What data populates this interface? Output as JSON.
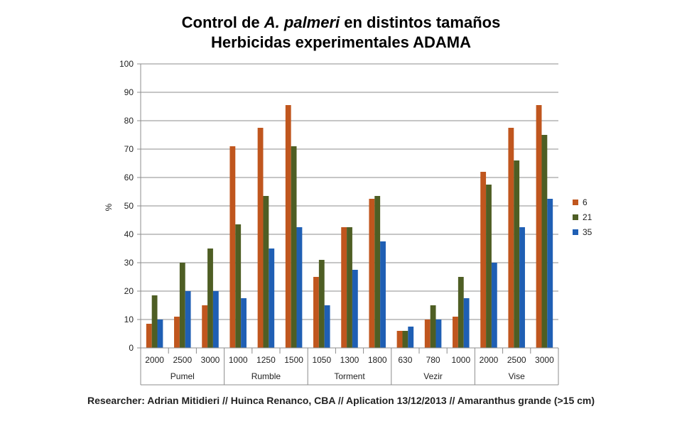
{
  "chart_data": {
    "type": "bar",
    "title_line1_pre": "Control de ",
    "title_line1_ital": "A. palmeri",
    "title_line1_post": " en distintos tamaños",
    "title_line2": "Herbicidas experimentales ADAMA",
    "ylabel": "%",
    "ylim": [
      0,
      100
    ],
    "yticks": [
      0,
      10,
      20,
      30,
      40,
      50,
      60,
      70,
      80,
      90,
      100
    ],
    "grid": true,
    "legend_position": "right",
    "groups": [
      {
        "name": "Pumel",
        "doses": [
          "2000",
          "2500",
          "3000"
        ]
      },
      {
        "name": "Rumble",
        "doses": [
          "1000",
          "1250",
          "1500"
        ]
      },
      {
        "name": "Torment",
        "doses": [
          "1050",
          "1300",
          "1800"
        ]
      },
      {
        "name": "Vezir",
        "doses": [
          "630",
          "780",
          "1000"
        ]
      },
      {
        "name": "Vise",
        "doses": [
          "2000",
          "2500",
          "3000"
        ]
      }
    ],
    "series": [
      {
        "name": "6",
        "color": "#c0561e",
        "values": [
          8.5,
          11,
          15,
          71,
          77.5,
          85.5,
          25,
          42.5,
          52.5,
          6,
          10,
          11,
          62,
          77.5,
          85.5
        ]
      },
      {
        "name": "21",
        "color": "#4e5e24",
        "values": [
          18.5,
          30,
          35,
          43.5,
          53.5,
          71,
          31,
          42.5,
          53.5,
          6,
          15,
          25,
          57.5,
          66,
          75
        ]
      },
      {
        "name": "35",
        "color": "#1f5fb4",
        "values": [
          10,
          20,
          20,
          17.5,
          35,
          42.5,
          15,
          27.5,
          37.5,
          7.5,
          10,
          17.5,
          30,
          42.5,
          52.5
        ]
      }
    ]
  },
  "footer": "Researcher: Adrian Mitidieri // Huinca Renanco, CBA // Aplication 13/12/2013 // Amaranthus grande (>15 cm)"
}
